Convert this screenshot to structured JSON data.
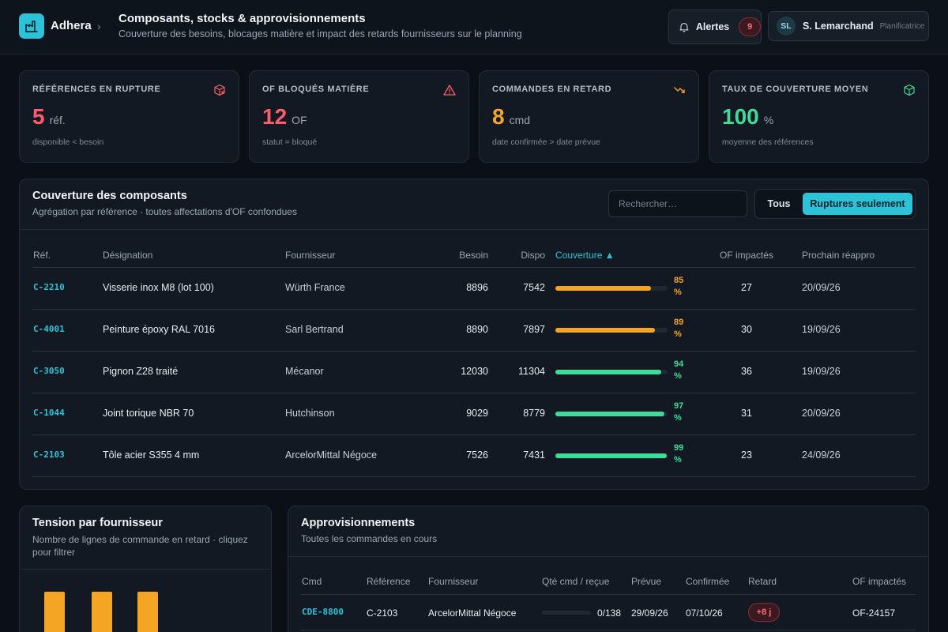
{
  "header": {
    "brand": "Adhera",
    "title": "Composants, stocks & approvisionnements",
    "subtitle": "Couverture des besoins, blocages matière et impact des retards fournisseurs sur le planning",
    "alerts_label": "Alertes",
    "alerts_count": "9",
    "user_initials": "SL",
    "user_name": "S. Lemarchand",
    "user_role": "Planificatrice"
  },
  "kpis": [
    {
      "label": "RÉFÉRENCES EN RUPTURE",
      "value": "5",
      "unit": "réf.",
      "hint": "disponible < besoin",
      "color": "#ff5b6a",
      "icon": "box-x-icon"
    },
    {
      "label": "OF BLOQUÉS MATIÈRE",
      "value": "12",
      "unit": "OF",
      "hint": "statut = bloqué",
      "color": "#ff5b6a",
      "icon": "warning-triangle-icon"
    },
    {
      "label": "COMMANDES EN RETARD",
      "value": "8",
      "unit": "cmd",
      "hint": "date confirmée > date prévue",
      "color": "#f5a524",
      "icon": "trending-down-icon"
    },
    {
      "label": "TAUX DE COUVERTURE MOYEN",
      "value": "100",
      "unit": "%",
      "hint": "moyenne des références",
      "color": "#3ddc97",
      "icon": "cube-icon"
    }
  ],
  "coverage": {
    "title": "Couverture des composants",
    "subtitle": "Agrégation par référence · toutes affectations d'OF confondues",
    "search_placeholder": "Rechercher…",
    "filter_all": "Tous",
    "filter_ruptures": "Ruptures seulement",
    "columns": [
      "Réf.",
      "Désignation",
      "Fournisseur",
      "Besoin",
      "Dispo",
      "Couverture ▲",
      "OF impactés",
      "Prochain réappro"
    ],
    "rows": [
      {
        "ref": "C-2210",
        "designation": "Visserie inox M8 (lot 100)",
        "supplier": "Würth France",
        "need": "8896",
        "avail": "7542",
        "coverage": 85,
        "coverage_label": "85",
        "color": "#f5a524",
        "of": "27",
        "next": "20/09/26"
      },
      {
        "ref": "C-4001",
        "designation": "Peinture époxy RAL 7016",
        "supplier": "Sarl Bertrand",
        "need": "8890",
        "avail": "7897",
        "coverage": 89,
        "coverage_label": "89",
        "color": "#f5a524",
        "of": "30",
        "next": "19/09/26"
      },
      {
        "ref": "C-3050",
        "designation": "Pignon Z28 traité",
        "supplier": "Mécanor",
        "need": "12030",
        "avail": "11304",
        "coverage": 94,
        "coverage_label": "94",
        "color": "#3ddc97",
        "of": "36",
        "next": "19/09/26"
      },
      {
        "ref": "C-1044",
        "designation": "Joint torique NBR 70",
        "supplier": "Hutchinson",
        "need": "9029",
        "avail": "8779",
        "coverage": 97,
        "coverage_label": "97",
        "color": "#3ddc97",
        "of": "31",
        "next": "20/09/26"
      },
      {
        "ref": "C-2103",
        "designation": "Tôle acier S355 4 mm",
        "supplier": "ArcelorMittal Négoce",
        "need": "7526",
        "avail": "7431",
        "coverage": 99,
        "coverage_label": "99",
        "color": "#3ddc97",
        "of": "23",
        "next": "24/09/26"
      }
    ],
    "pct_sign": "%"
  },
  "tension": {
    "title": "Tension par fournisseur",
    "subtitle": "Nombre de lignes de commande en retard · cliquez pour filtrer"
  },
  "supplies": {
    "title": "Approvisionnements",
    "subtitle": "Toutes les commandes en cours",
    "columns": [
      "Cmd",
      "Référence",
      "Fournisseur",
      "Qté cmd / reçue",
      "Prévue",
      "Confirmée",
      "Retard",
      "OF impactés"
    ],
    "rows": [
      {
        "cmd": "CDE-8800",
        "ref": "C-2103",
        "supplier": "ArcelorMittal Négoce",
        "qty": "0/138",
        "received_fraction": 0,
        "planned": "29/09/26",
        "confirmed": "07/10/26",
        "delay": "+8 j",
        "of": "OF-24157"
      }
    ]
  }
}
